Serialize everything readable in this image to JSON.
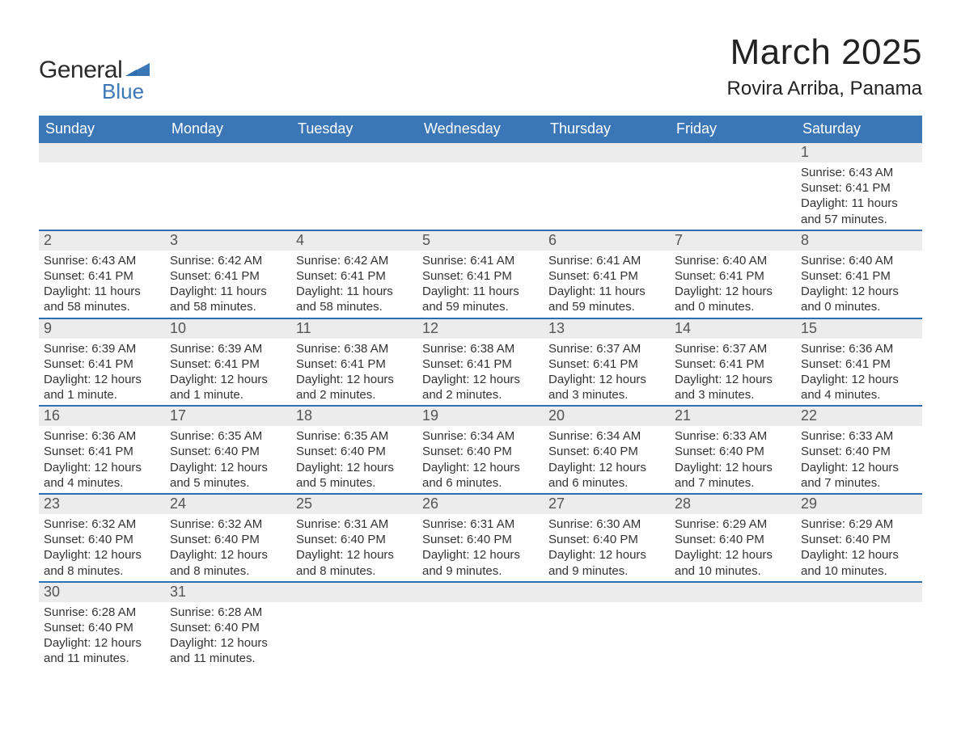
{
  "logo": {
    "line1": "General",
    "line2": "Blue"
  },
  "title": {
    "month": "March 2025",
    "place": "Rovira Arriba, Panama"
  },
  "weekdays": [
    "Sunday",
    "Monday",
    "Tuesday",
    "Wednesday",
    "Thursday",
    "Friday",
    "Saturday"
  ],
  "styling": {
    "header_blue": "#3b77b7",
    "row_border": "#2e6fb0",
    "daynum_bg": "#ececec",
    "text_color": "#333333",
    "title_fontsize": 44,
    "place_fontsize": 24,
    "weekday_fontsize": 18,
    "daynum_fontsize": 18,
    "info_fontsize": 15
  },
  "weeks": [
    [
      {
        "empty": true
      },
      {
        "empty": true
      },
      {
        "empty": true
      },
      {
        "empty": true
      },
      {
        "empty": true
      },
      {
        "empty": true
      },
      {
        "n": "1",
        "sunrise": "Sunrise: 6:43 AM",
        "sunset": "Sunset: 6:41 PM",
        "daylight": "Daylight: 11 hours\nand 57 minutes."
      }
    ],
    [
      {
        "n": "2",
        "sunrise": "Sunrise: 6:43 AM",
        "sunset": "Sunset: 6:41 PM",
        "daylight": "Daylight: 11 hours\nand 58 minutes."
      },
      {
        "n": "3",
        "sunrise": "Sunrise: 6:42 AM",
        "sunset": "Sunset: 6:41 PM",
        "daylight": "Daylight: 11 hours\nand 58 minutes."
      },
      {
        "n": "4",
        "sunrise": "Sunrise: 6:42 AM",
        "sunset": "Sunset: 6:41 PM",
        "daylight": "Daylight: 11 hours\nand 58 minutes."
      },
      {
        "n": "5",
        "sunrise": "Sunrise: 6:41 AM",
        "sunset": "Sunset: 6:41 PM",
        "daylight": "Daylight: 11 hours\nand 59 minutes."
      },
      {
        "n": "6",
        "sunrise": "Sunrise: 6:41 AM",
        "sunset": "Sunset: 6:41 PM",
        "daylight": "Daylight: 11 hours\nand 59 minutes."
      },
      {
        "n": "7",
        "sunrise": "Sunrise: 6:40 AM",
        "sunset": "Sunset: 6:41 PM",
        "daylight": "Daylight: 12 hours\nand 0 minutes."
      },
      {
        "n": "8",
        "sunrise": "Sunrise: 6:40 AM",
        "sunset": "Sunset: 6:41 PM",
        "daylight": "Daylight: 12 hours\nand 0 minutes."
      }
    ],
    [
      {
        "n": "9",
        "sunrise": "Sunrise: 6:39 AM",
        "sunset": "Sunset: 6:41 PM",
        "daylight": "Daylight: 12 hours\nand 1 minute."
      },
      {
        "n": "10",
        "sunrise": "Sunrise: 6:39 AM",
        "sunset": "Sunset: 6:41 PM",
        "daylight": "Daylight: 12 hours\nand 1 minute."
      },
      {
        "n": "11",
        "sunrise": "Sunrise: 6:38 AM",
        "sunset": "Sunset: 6:41 PM",
        "daylight": "Daylight: 12 hours\nand 2 minutes."
      },
      {
        "n": "12",
        "sunrise": "Sunrise: 6:38 AM",
        "sunset": "Sunset: 6:41 PM",
        "daylight": "Daylight: 12 hours\nand 2 minutes."
      },
      {
        "n": "13",
        "sunrise": "Sunrise: 6:37 AM",
        "sunset": "Sunset: 6:41 PM",
        "daylight": "Daylight: 12 hours\nand 3 minutes."
      },
      {
        "n": "14",
        "sunrise": "Sunrise: 6:37 AM",
        "sunset": "Sunset: 6:41 PM",
        "daylight": "Daylight: 12 hours\nand 3 minutes."
      },
      {
        "n": "15",
        "sunrise": "Sunrise: 6:36 AM",
        "sunset": "Sunset: 6:41 PM",
        "daylight": "Daylight: 12 hours\nand 4 minutes."
      }
    ],
    [
      {
        "n": "16",
        "sunrise": "Sunrise: 6:36 AM",
        "sunset": "Sunset: 6:41 PM",
        "daylight": "Daylight: 12 hours\nand 4 minutes."
      },
      {
        "n": "17",
        "sunrise": "Sunrise: 6:35 AM",
        "sunset": "Sunset: 6:40 PM",
        "daylight": "Daylight: 12 hours\nand 5 minutes."
      },
      {
        "n": "18",
        "sunrise": "Sunrise: 6:35 AM",
        "sunset": "Sunset: 6:40 PM",
        "daylight": "Daylight: 12 hours\nand 5 minutes."
      },
      {
        "n": "19",
        "sunrise": "Sunrise: 6:34 AM",
        "sunset": "Sunset: 6:40 PM",
        "daylight": "Daylight: 12 hours\nand 6 minutes."
      },
      {
        "n": "20",
        "sunrise": "Sunrise: 6:34 AM",
        "sunset": "Sunset: 6:40 PM",
        "daylight": "Daylight: 12 hours\nand 6 minutes."
      },
      {
        "n": "21",
        "sunrise": "Sunrise: 6:33 AM",
        "sunset": "Sunset: 6:40 PM",
        "daylight": "Daylight: 12 hours\nand 7 minutes."
      },
      {
        "n": "22",
        "sunrise": "Sunrise: 6:33 AM",
        "sunset": "Sunset: 6:40 PM",
        "daylight": "Daylight: 12 hours\nand 7 minutes."
      }
    ],
    [
      {
        "n": "23",
        "sunrise": "Sunrise: 6:32 AM",
        "sunset": "Sunset: 6:40 PM",
        "daylight": "Daylight: 12 hours\nand 8 minutes."
      },
      {
        "n": "24",
        "sunrise": "Sunrise: 6:32 AM",
        "sunset": "Sunset: 6:40 PM",
        "daylight": "Daylight: 12 hours\nand 8 minutes."
      },
      {
        "n": "25",
        "sunrise": "Sunrise: 6:31 AM",
        "sunset": "Sunset: 6:40 PM",
        "daylight": "Daylight: 12 hours\nand 8 minutes."
      },
      {
        "n": "26",
        "sunrise": "Sunrise: 6:31 AM",
        "sunset": "Sunset: 6:40 PM",
        "daylight": "Daylight: 12 hours\nand 9 minutes."
      },
      {
        "n": "27",
        "sunrise": "Sunrise: 6:30 AM",
        "sunset": "Sunset: 6:40 PM",
        "daylight": "Daylight: 12 hours\nand 9 minutes."
      },
      {
        "n": "28",
        "sunrise": "Sunrise: 6:29 AM",
        "sunset": "Sunset: 6:40 PM",
        "daylight": "Daylight: 12 hours\nand 10 minutes."
      },
      {
        "n": "29",
        "sunrise": "Sunrise: 6:29 AM",
        "sunset": "Sunset: 6:40 PM",
        "daylight": "Daylight: 12 hours\nand 10 minutes."
      }
    ],
    [
      {
        "n": "30",
        "sunrise": "Sunrise: 6:28 AM",
        "sunset": "Sunset: 6:40 PM",
        "daylight": "Daylight: 12 hours\nand 11 minutes."
      },
      {
        "n": "31",
        "sunrise": "Sunrise: 6:28 AM",
        "sunset": "Sunset: 6:40 PM",
        "daylight": "Daylight: 12 hours\nand 11 minutes."
      },
      {
        "empty": true
      },
      {
        "empty": true
      },
      {
        "empty": true
      },
      {
        "empty": true
      },
      {
        "empty": true
      }
    ]
  ]
}
